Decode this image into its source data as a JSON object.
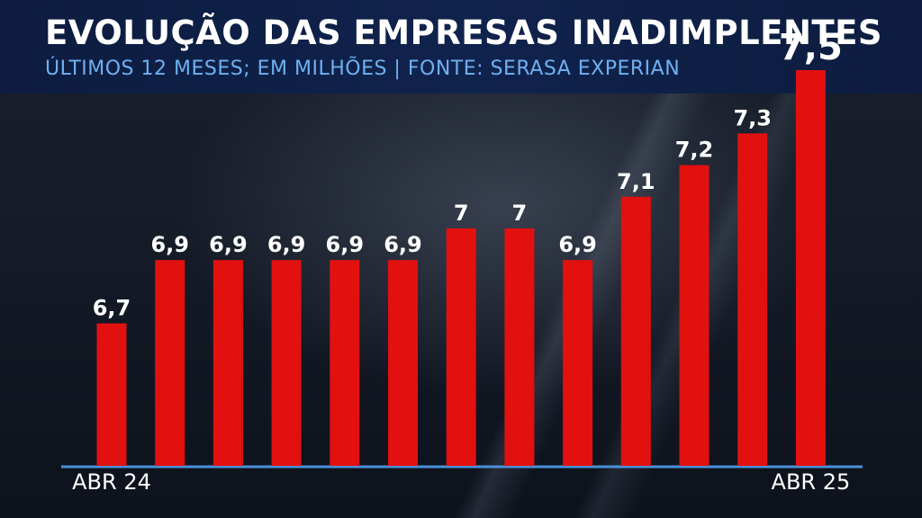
{
  "header": {
    "title": "EVOLUÇÃO DAS EMPRESAS INADIMPLENTES",
    "subtitle": "ÚLTIMOS 12 MESES; EM MILHÕES | FONTE: SERASA EXPERIAN"
  },
  "colors": {
    "bar": "#e31010",
    "header_bg": "#10234d",
    "subtitle": "#6fb0f2",
    "axis": "#4a90d9"
  },
  "chart_data": {
    "type": "bar",
    "title": "EVOLUÇÃO DAS EMPRESAS INADIMPLENTES",
    "subtitle": "ÚLTIMOS 12 MESES; EM MILHÕES | FONTE: SERASA EXPERIAN",
    "values": [
      6.7,
      6.9,
      6.9,
      6.9,
      6.9,
      6.9,
      7,
      7,
      6.9,
      7.1,
      7.2,
      7.3,
      7.5
    ],
    "value_labels": [
      "6,7",
      "6,9",
      "6,9",
      "6,9",
      "6,9",
      "6,9",
      "7",
      "7",
      "6,9",
      "7,1",
      "7,2",
      "7,3",
      "7,5"
    ],
    "x_tick_labels": [
      {
        "index": 0,
        "label": "ABR 24"
      },
      {
        "index": 12,
        "label": "ABR 25"
      }
    ],
    "xlabel": "",
    "ylabel": "",
    "grid": false,
    "legend": "none"
  }
}
